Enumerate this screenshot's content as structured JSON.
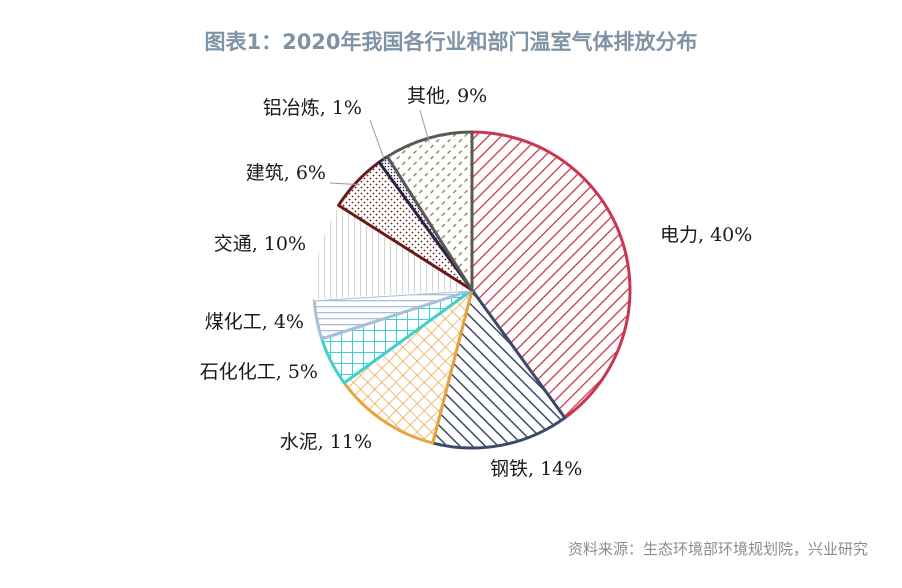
{
  "title": "图表1：2020年我国各行业和部门温室气体排放分布",
  "source": "资料来源：生态环境部环境规划院，兴业研究",
  "chart_data": {
    "type": "pie",
    "title": "图表1：2020年我国各行业和部门温室气体排放分布",
    "start": "12 o'clock, clockwise",
    "slices": [
      {
        "name": "电力",
        "value": 40,
        "label": "电力, 40%",
        "color": "#c8374e",
        "pattern": "diagonal-lines"
      },
      {
        "name": "钢铁",
        "value": 14,
        "label": "钢铁, 14%",
        "color": "#3b4a6b",
        "pattern": "diagonal-lines"
      },
      {
        "name": "水泥",
        "value": 11,
        "label": "水泥, 11%",
        "color": "#e8a33a",
        "pattern": "diagonal-crosshatch"
      },
      {
        "name": "石化化工",
        "value": 5,
        "label": "石化化工, 5%",
        "color": "#3fd0cf",
        "pattern": "grid"
      },
      {
        "name": "煤化工",
        "value": 4,
        "label": "煤化工, 4%",
        "color": "#a9bed8",
        "pattern": "horizontal-lines"
      },
      {
        "name": "交通",
        "value": 10,
        "label": "交通, 10%",
        "color": "#d6d6d6",
        "pattern": "vertical-lines"
      },
      {
        "name": "建筑",
        "value": 6,
        "label": "建筑, 6%",
        "color": "#6b1a1a",
        "pattern": "dots"
      },
      {
        "name": "铝冶炼",
        "value": 1,
        "label": "铝冶炼, 1%",
        "color": "#2d2442",
        "pattern": "dense-dots"
      },
      {
        "name": "其他",
        "value": 9,
        "label": "其他, 9%",
        "color": "#595959",
        "pattern": "dashed-diagonal"
      }
    ]
  }
}
